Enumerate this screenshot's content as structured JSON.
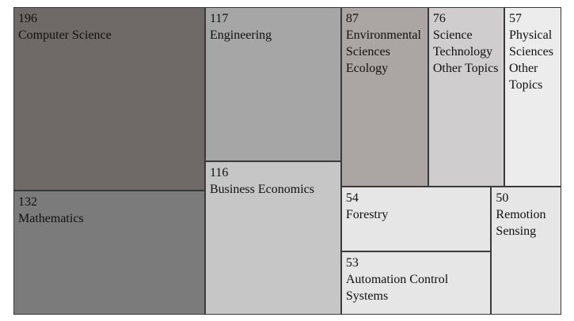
{
  "chart_data": {
    "type": "treemap",
    "categories": [
      "Computer Science",
      "Mathematics",
      "Engineering",
      "Business Economics",
      "Environmental Sciences Ecology",
      "Science Technology Other Topics",
      "Physical Sciences Other Topics",
      "Forestry",
      "Automation Control Systems",
      "Remotion Sensing"
    ],
    "values": [
      196,
      132,
      117,
      116,
      87,
      76,
      57,
      54,
      53,
      50
    ],
    "colors": [
      "#6f6a68",
      "#7b7b7b",
      "#a6a6a6",
      "#c6c6c6",
      "#aba5a3",
      "#d0cdce",
      "#ececec",
      "#e6e6e6",
      "#e6e6e6",
      "#e6e6e6"
    ]
  }
}
